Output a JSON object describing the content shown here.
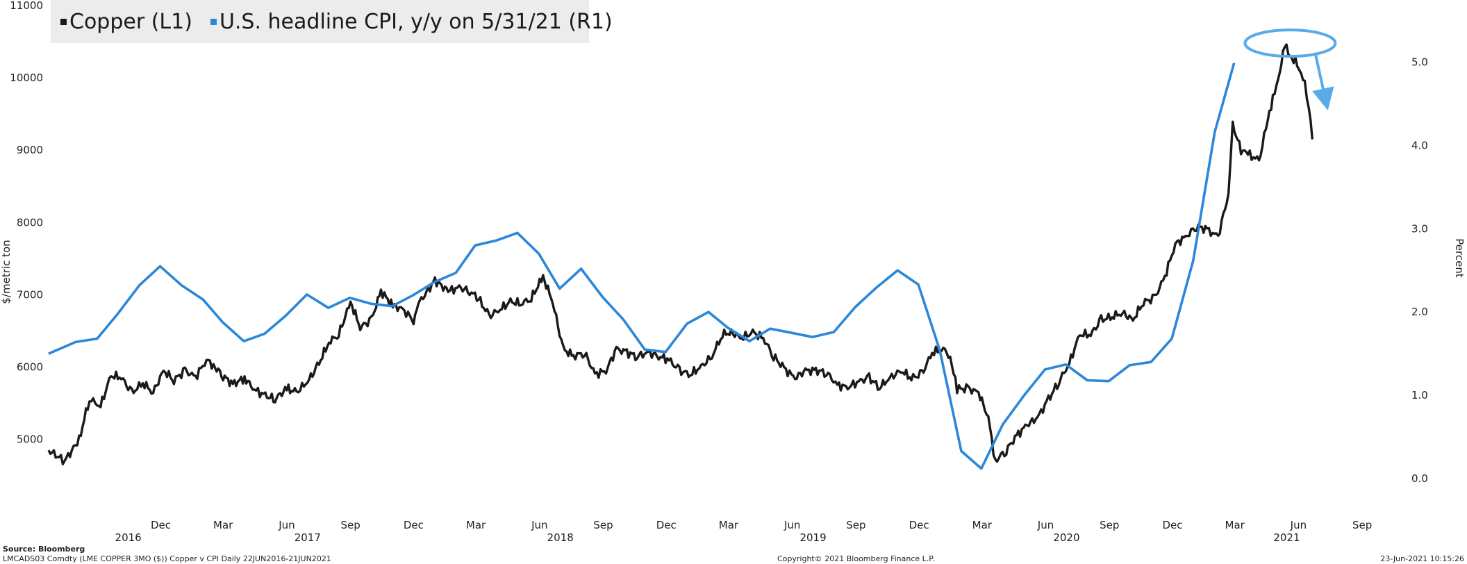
{
  "chart_data": {
    "type": "line",
    "legend_position": "top-left",
    "grid": false,
    "left_axis": {
      "label": "$/metric ton",
      "ticks": [
        5000,
        6000,
        7000,
        8000,
        9000,
        10000,
        11000
      ],
      "range": [
        4400,
        11000
      ]
    },
    "right_axis": {
      "label": "Percent",
      "ticks": [
        "0.0",
        "1.0",
        "2.0",
        "3.0",
        "4.0",
        "5.0"
      ],
      "range": [
        -0.05,
        5.68
      ]
    },
    "x_axis": {
      "months": [
        {
          "label": "Dec",
          "date": "2016-12-01"
        },
        {
          "label": "Mar",
          "date": "2017-03-01"
        },
        {
          "label": "Jun",
          "date": "2017-06-01"
        },
        {
          "label": "Sep",
          "date": "2017-09-01"
        },
        {
          "label": "Dec",
          "date": "2017-12-01"
        },
        {
          "label": "Mar",
          "date": "2018-03-01"
        },
        {
          "label": "Jun",
          "date": "2018-06-01"
        },
        {
          "label": "Sep",
          "date": "2018-09-01"
        },
        {
          "label": "Dec",
          "date": "2018-12-01"
        },
        {
          "label": "Mar",
          "date": "2019-03-01"
        },
        {
          "label": "Jun",
          "date": "2019-06-01"
        },
        {
          "label": "Sep",
          "date": "2019-09-01"
        },
        {
          "label": "Dec",
          "date": "2019-12-01"
        },
        {
          "label": "Mar",
          "date": "2020-03-01"
        },
        {
          "label": "Jun",
          "date": "2020-06-01"
        },
        {
          "label": "Sep",
          "date": "2020-09-01"
        },
        {
          "label": "Dec",
          "date": "2020-12-01"
        },
        {
          "label": "Mar",
          "date": "2021-03-01"
        },
        {
          "label": "Jun",
          "date": "2021-06-01"
        },
        {
          "label": "Sep",
          "date": "2021-09-01"
        }
      ],
      "years": [
        {
          "label": "2016",
          "date": "2016-10-15"
        },
        {
          "label": "2017",
          "date": "2017-07-01"
        },
        {
          "label": "2018",
          "date": "2018-07-01"
        },
        {
          "label": "2019",
          "date": "2019-07-01"
        },
        {
          "label": "2020",
          "date": "2020-07-01"
        },
        {
          "label": "2021",
          "date": "2021-05-15"
        }
      ],
      "range": [
        "2016-06-22",
        "2021-10-05"
      ]
    },
    "series": [
      {
        "name": "Copper (L1)",
        "axis": "left",
        "color": "#1a1a1a",
        "points": [
          [
            "2016-06-22",
            4850
          ],
          [
            "2016-07-15",
            4700
          ],
          [
            "2016-08-05",
            4990
          ],
          [
            "2016-08-20",
            5560
          ],
          [
            "2016-09-05",
            5460
          ],
          [
            "2016-09-20",
            5880
          ],
          [
            "2016-10-05",
            5860
          ],
          [
            "2016-10-20",
            5640
          ],
          [
            "2016-11-05",
            5780
          ],
          [
            "2016-11-20",
            5650
          ],
          [
            "2016-12-05",
            5950
          ],
          [
            "2016-12-20",
            5820
          ],
          [
            "2017-01-05",
            5950
          ],
          [
            "2017-01-20",
            5860
          ],
          [
            "2017-02-05",
            6100
          ],
          [
            "2017-02-15",
            6020
          ],
          [
            "2017-03-01",
            5880
          ],
          [
            "2017-03-15",
            5760
          ],
          [
            "2017-04-01",
            5850
          ],
          [
            "2017-04-15",
            5690
          ],
          [
            "2017-05-01",
            5600
          ],
          [
            "2017-05-15",
            5560
          ],
          [
            "2017-06-01",
            5700
          ],
          [
            "2017-06-15",
            5650
          ],
          [
            "2017-07-01",
            5800
          ],
          [
            "2017-07-15",
            6000
          ],
          [
            "2017-08-01",
            6350
          ],
          [
            "2017-08-15",
            6450
          ],
          [
            "2017-09-01",
            6900
          ],
          [
            "2017-09-15",
            6550
          ],
          [
            "2017-10-01",
            6650
          ],
          [
            "2017-10-15",
            7050
          ],
          [
            "2017-11-01",
            6850
          ],
          [
            "2017-11-15",
            6800
          ],
          [
            "2017-12-01",
            6650
          ],
          [
            "2017-12-10",
            6900
          ],
          [
            "2018-01-01",
            7200
          ],
          [
            "2018-01-20",
            7050
          ],
          [
            "2018-02-05",
            7100
          ],
          [
            "2018-02-20",
            7050
          ],
          [
            "2018-03-05",
            6950
          ],
          [
            "2018-03-20",
            6700
          ],
          [
            "2018-04-05",
            6800
          ],
          [
            "2018-04-20",
            6900
          ],
          [
            "2018-05-05",
            6880
          ],
          [
            "2018-05-20",
            6950
          ],
          [
            "2018-06-06",
            7250
          ],
          [
            "2018-06-20",
            6900
          ],
          [
            "2018-07-05",
            6250
          ],
          [
            "2018-07-20",
            6150
          ],
          [
            "2018-08-05",
            6200
          ],
          [
            "2018-08-20",
            5900
          ],
          [
            "2018-09-05",
            5950
          ],
          [
            "2018-09-20",
            6250
          ],
          [
            "2018-10-05",
            6200
          ],
          [
            "2018-10-20",
            6150
          ],
          [
            "2018-11-05",
            6200
          ],
          [
            "2018-11-20",
            6150
          ],
          [
            "2018-12-05",
            6100
          ],
          [
            "2018-12-20",
            5950
          ],
          [
            "2019-01-05",
            5900
          ],
          [
            "2019-01-20",
            6000
          ],
          [
            "2019-02-05",
            6150
          ],
          [
            "2019-02-20",
            6450
          ],
          [
            "2019-03-05",
            6480
          ],
          [
            "2019-03-20",
            6400
          ],
          [
            "2019-04-05",
            6480
          ],
          [
            "2019-04-20",
            6400
          ],
          [
            "2019-05-05",
            6150
          ],
          [
            "2019-05-20",
            5980
          ],
          [
            "2019-06-05",
            5850
          ],
          [
            "2019-06-20",
            5950
          ],
          [
            "2019-07-05",
            5950
          ],
          [
            "2019-07-20",
            5930
          ],
          [
            "2019-08-05",
            5750
          ],
          [
            "2019-08-20",
            5720
          ],
          [
            "2019-09-05",
            5800
          ],
          [
            "2019-09-20",
            5850
          ],
          [
            "2019-10-05",
            5720
          ],
          [
            "2019-10-20",
            5850
          ],
          [
            "2019-11-05",
            5950
          ],
          [
            "2019-11-20",
            5850
          ],
          [
            "2019-12-05",
            5900
          ],
          [
            "2019-12-20",
            6200
          ],
          [
            "2020-01-05",
            6250
          ],
          [
            "2020-01-15",
            6150
          ],
          [
            "2020-01-25",
            5700
          ],
          [
            "2020-02-10",
            5700
          ],
          [
            "2020-02-25",
            5650
          ],
          [
            "2020-03-10",
            5300
          ],
          [
            "2020-03-20",
            4700
          ],
          [
            "2020-04-05",
            4850
          ],
          [
            "2020-04-20",
            5050
          ],
          [
            "2020-05-05",
            5200
          ],
          [
            "2020-05-20",
            5300
          ],
          [
            "2020-06-05",
            5550
          ],
          [
            "2020-06-20",
            5800
          ],
          [
            "2020-07-05",
            6050
          ],
          [
            "2020-07-20",
            6450
          ],
          [
            "2020-08-05",
            6450
          ],
          [
            "2020-08-20",
            6650
          ],
          [
            "2020-09-05",
            6700
          ],
          [
            "2020-09-20",
            6750
          ],
          [
            "2020-10-05",
            6650
          ],
          [
            "2020-10-20",
            6900
          ],
          [
            "2020-11-05",
            6950
          ],
          [
            "2020-11-20",
            7250
          ],
          [
            "2020-12-05",
            7700
          ],
          [
            "2020-12-20",
            7800
          ],
          [
            "2021-01-05",
            7950
          ],
          [
            "2021-01-20",
            7900
          ],
          [
            "2021-02-05",
            7800
          ],
          [
            "2021-02-20",
            8400
          ],
          [
            "2021-02-26",
            9350
          ],
          [
            "2021-03-10",
            9000
          ],
          [
            "2021-03-20",
            8950
          ],
          [
            "2021-04-05",
            8850
          ],
          [
            "2021-04-15",
            9300
          ],
          [
            "2021-04-25",
            9700
          ],
          [
            "2021-05-05",
            10100
          ],
          [
            "2021-05-12",
            10450
          ],
          [
            "2021-05-20",
            10300
          ],
          [
            "2021-05-30",
            10200
          ],
          [
            "2021-06-05",
            10000
          ],
          [
            "2021-06-10",
            9950
          ],
          [
            "2021-06-16",
            9600
          ],
          [
            "2021-06-21",
            9150
          ]
        ]
      },
      {
        "name": "U.S. headline CPI, y/y on 5/31/21 (R1)",
        "axis": "right",
        "color": "#2b87d9",
        "points": [
          [
            "2016-06-22",
            1.5
          ],
          [
            "2016-07-31",
            1.64
          ],
          [
            "2016-08-31",
            1.68
          ],
          [
            "2016-09-30",
            1.98
          ],
          [
            "2016-10-31",
            2.32
          ],
          [
            "2016-11-30",
            2.55
          ],
          [
            "2016-12-31",
            2.32
          ],
          [
            "2017-01-31",
            2.15
          ],
          [
            "2017-02-28",
            1.88
          ],
          [
            "2017-03-31",
            1.65
          ],
          [
            "2017-04-30",
            1.74
          ],
          [
            "2017-05-31",
            1.96
          ],
          [
            "2017-06-30",
            2.21
          ],
          [
            "2017-07-31",
            2.05
          ],
          [
            "2017-08-31",
            2.17
          ],
          [
            "2017-09-30",
            2.1
          ],
          [
            "2017-10-31",
            2.07
          ],
          [
            "2017-11-30",
            2.2
          ],
          [
            "2017-12-31",
            2.36
          ],
          [
            "2018-01-31",
            2.47
          ],
          [
            "2018-02-28",
            2.8
          ],
          [
            "2018-03-31",
            2.86
          ],
          [
            "2018-04-30",
            2.95
          ],
          [
            "2018-05-31",
            2.7
          ],
          [
            "2018-06-30",
            2.28
          ],
          [
            "2018-07-31",
            2.52
          ],
          [
            "2018-08-31",
            2.18
          ],
          [
            "2018-09-30",
            1.91
          ],
          [
            "2018-10-31",
            1.55
          ],
          [
            "2018-11-30",
            1.52
          ],
          [
            "2018-12-31",
            1.86
          ],
          [
            "2019-01-31",
            2.0
          ],
          [
            "2019-02-28",
            1.81
          ],
          [
            "2019-03-31",
            1.65
          ],
          [
            "2019-04-30",
            1.8
          ],
          [
            "2019-05-31",
            1.75
          ],
          [
            "2019-06-30",
            1.7
          ],
          [
            "2019-07-31",
            1.76
          ],
          [
            "2019-08-31",
            2.06
          ],
          [
            "2019-09-30",
            2.29
          ],
          [
            "2019-10-31",
            2.5
          ],
          [
            "2019-11-30",
            2.33
          ],
          [
            "2019-12-31",
            1.54
          ],
          [
            "2020-01-31",
            0.33
          ],
          [
            "2020-02-29",
            0.12
          ],
          [
            "2020-03-31",
            0.65
          ],
          [
            "2020-04-30",
            0.99
          ],
          [
            "2020-05-31",
            1.31
          ],
          [
            "2020-06-30",
            1.37
          ],
          [
            "2020-07-31",
            1.18
          ],
          [
            "2020-08-31",
            1.17
          ],
          [
            "2020-09-30",
            1.36
          ],
          [
            "2020-10-31",
            1.4
          ],
          [
            "2020-11-30",
            1.68
          ],
          [
            "2020-12-31",
            2.62
          ],
          [
            "2021-01-31",
            4.16
          ],
          [
            "2021-02-28",
            4.99
          ]
        ]
      }
    ],
    "annotations": [
      {
        "type": "ellipse",
        "color": "#5aaae8",
        "center": [
          "2021-05-20",
          10480
        ]
      },
      {
        "type": "arrow",
        "color": "#5aaae8",
        "from": [
          "2021-06-25",
          10350
        ],
        "to": [
          "2021-07-10",
          9700
        ]
      }
    ],
    "legend": [
      {
        "label": "Copper (L1)",
        "color": "#1a1a1a"
      },
      {
        "label": "U.S. headline CPI, y/y on 5/31/21 (R1)",
        "color": "#2b87d9"
      }
    ]
  },
  "footer": {
    "source": "Source:  Bloomberg",
    "ticker": "LMCADS03 Comdty (LME COPPER   3MO ($)) Copper v CPI  Daily 22JUN2016-21JUN2021",
    "copyright": "Copyright© 2021 Bloomberg Finance L.P.",
    "timestamp": "23-Jun-2021 10:15:26"
  }
}
